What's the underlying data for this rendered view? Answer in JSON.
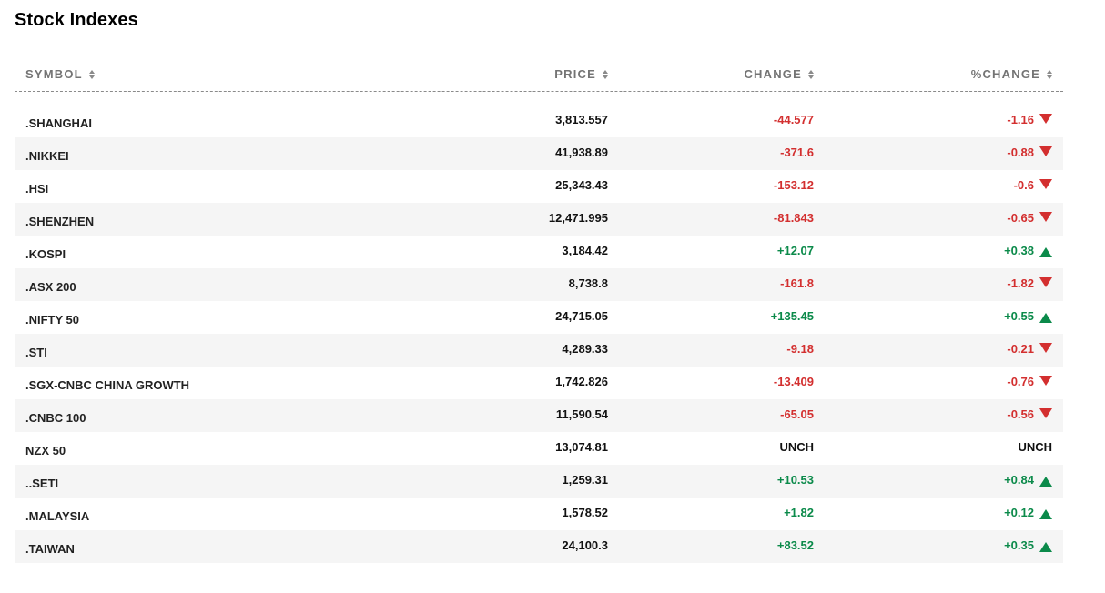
{
  "title": "Stock Indexes",
  "columns": {
    "symbol": "SYMBOL",
    "price": "PRICE",
    "change": "CHANGE",
    "pct_change": "%CHANGE"
  },
  "colors": {
    "negative": "#d32f2f",
    "positive": "#0b8a4a"
  },
  "rows": [
    {
      "symbol": ".SHANGHAI",
      "price": "3,813.557",
      "change": "-44.577",
      "pct": "-1.16",
      "dir": "down"
    },
    {
      "symbol": ".NIKKEI",
      "price": "41,938.89",
      "change": "-371.6",
      "pct": "-0.88",
      "dir": "down"
    },
    {
      "symbol": ".HSI",
      "price": "25,343.43",
      "change": "-153.12",
      "pct": "-0.6",
      "dir": "down"
    },
    {
      "symbol": ".SHENZHEN",
      "price": "12,471.995",
      "change": "-81.843",
      "pct": "-0.65",
      "dir": "down"
    },
    {
      "symbol": ".KOSPI",
      "price": "3,184.42",
      "change": "+12.07",
      "pct": "+0.38",
      "dir": "up"
    },
    {
      "symbol": ".ASX 200",
      "price": "8,738.8",
      "change": "-161.8",
      "pct": "-1.82",
      "dir": "down"
    },
    {
      "symbol": ".NIFTY 50",
      "price": "24,715.05",
      "change": "+135.45",
      "pct": "+0.55",
      "dir": "up"
    },
    {
      "symbol": ".STI",
      "price": "4,289.33",
      "change": "-9.18",
      "pct": "-0.21",
      "dir": "down"
    },
    {
      "symbol": ".SGX-CNBC CHINA GROWTH",
      "price": "1,742.826",
      "change": "-13.409",
      "pct": "-0.76",
      "dir": "down"
    },
    {
      "symbol": ".CNBC 100",
      "price": "11,590.54",
      "change": "-65.05",
      "pct": "-0.56",
      "dir": "down"
    },
    {
      "symbol": "NZX 50",
      "price": "13,074.81",
      "change": "UNCH",
      "pct": "UNCH",
      "dir": "none"
    },
    {
      "symbol": "..SETI",
      "price": "1,259.31",
      "change": "+10.53",
      "pct": "+0.84",
      "dir": "up"
    },
    {
      "symbol": ".MALAYSIA",
      "price": "1,578.52",
      "change": "+1.82",
      "pct": "+0.12",
      "dir": "up"
    },
    {
      "symbol": ".TAIWAN",
      "price": "24,100.3",
      "change": "+83.52",
      "pct": "+0.35",
      "dir": "up"
    }
  ]
}
